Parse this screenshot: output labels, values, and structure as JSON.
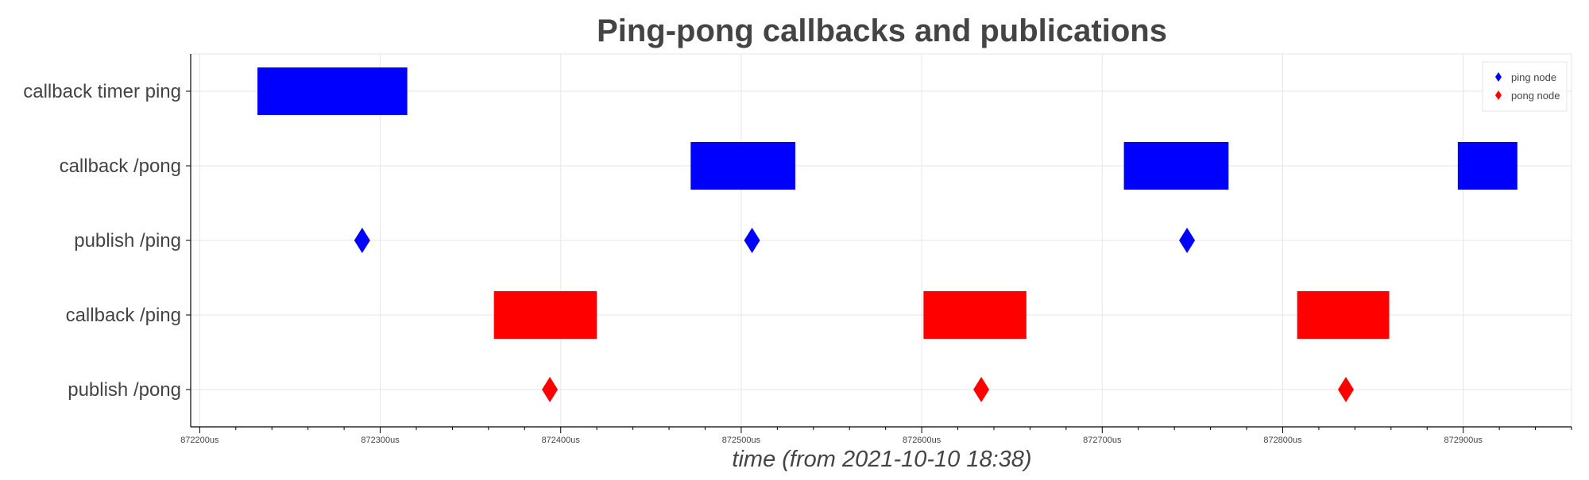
{
  "chart_data": {
    "type": "timeline",
    "title": "Ping-pong callbacks and publications",
    "xlabel": "time (from 2021-10-10 18:38)",
    "x_unit": "us",
    "xlim": [
      872195,
      872960
    ],
    "x_ticks": [
      872200,
      872300,
      872400,
      872500,
      872600,
      872700,
      872800,
      872900
    ],
    "x_tick_labels": [
      "872200us",
      "872300us",
      "872400us",
      "872500us",
      "872600us",
      "872700us",
      "872800us",
      "872900us"
    ],
    "categories": [
      "callback timer ping",
      "callback /pong",
      "publish /ping",
      "callback /ping",
      "publish /pong"
    ],
    "grid": true,
    "legend_position": "top-right",
    "legend": [
      {
        "label": "ping node",
        "color": "#0000ff"
      },
      {
        "label": "pong node",
        "color": "#ff0000"
      }
    ],
    "series": [
      {
        "name": "ping node",
        "color": "#0000ff",
        "intervals": [
          {
            "row": "callback timer ping",
            "start": 872232,
            "end": 872315
          },
          {
            "row": "callback /pong",
            "start": 872472,
            "end": 872530
          },
          {
            "row": "callback /pong",
            "start": 872712,
            "end": 872770
          },
          {
            "row": "callback /pong",
            "start": 872897,
            "end": 872930
          }
        ],
        "events": [
          {
            "row": "publish /ping",
            "time": 872290
          },
          {
            "row": "publish /ping",
            "time": 872506
          },
          {
            "row": "publish /ping",
            "time": 872747
          }
        ]
      },
      {
        "name": "pong node",
        "color": "#ff0000",
        "intervals": [
          {
            "row": "callback /ping",
            "start": 872363,
            "end": 872420
          },
          {
            "row": "callback /ping",
            "start": 872601,
            "end": 872658
          },
          {
            "row": "callback /ping",
            "start": 872808,
            "end": 872859
          }
        ],
        "events": [
          {
            "row": "publish /pong",
            "time": 872394
          },
          {
            "row": "publish /pong",
            "time": 872633
          },
          {
            "row": "publish /pong",
            "time": 872835
          }
        ]
      }
    ]
  }
}
